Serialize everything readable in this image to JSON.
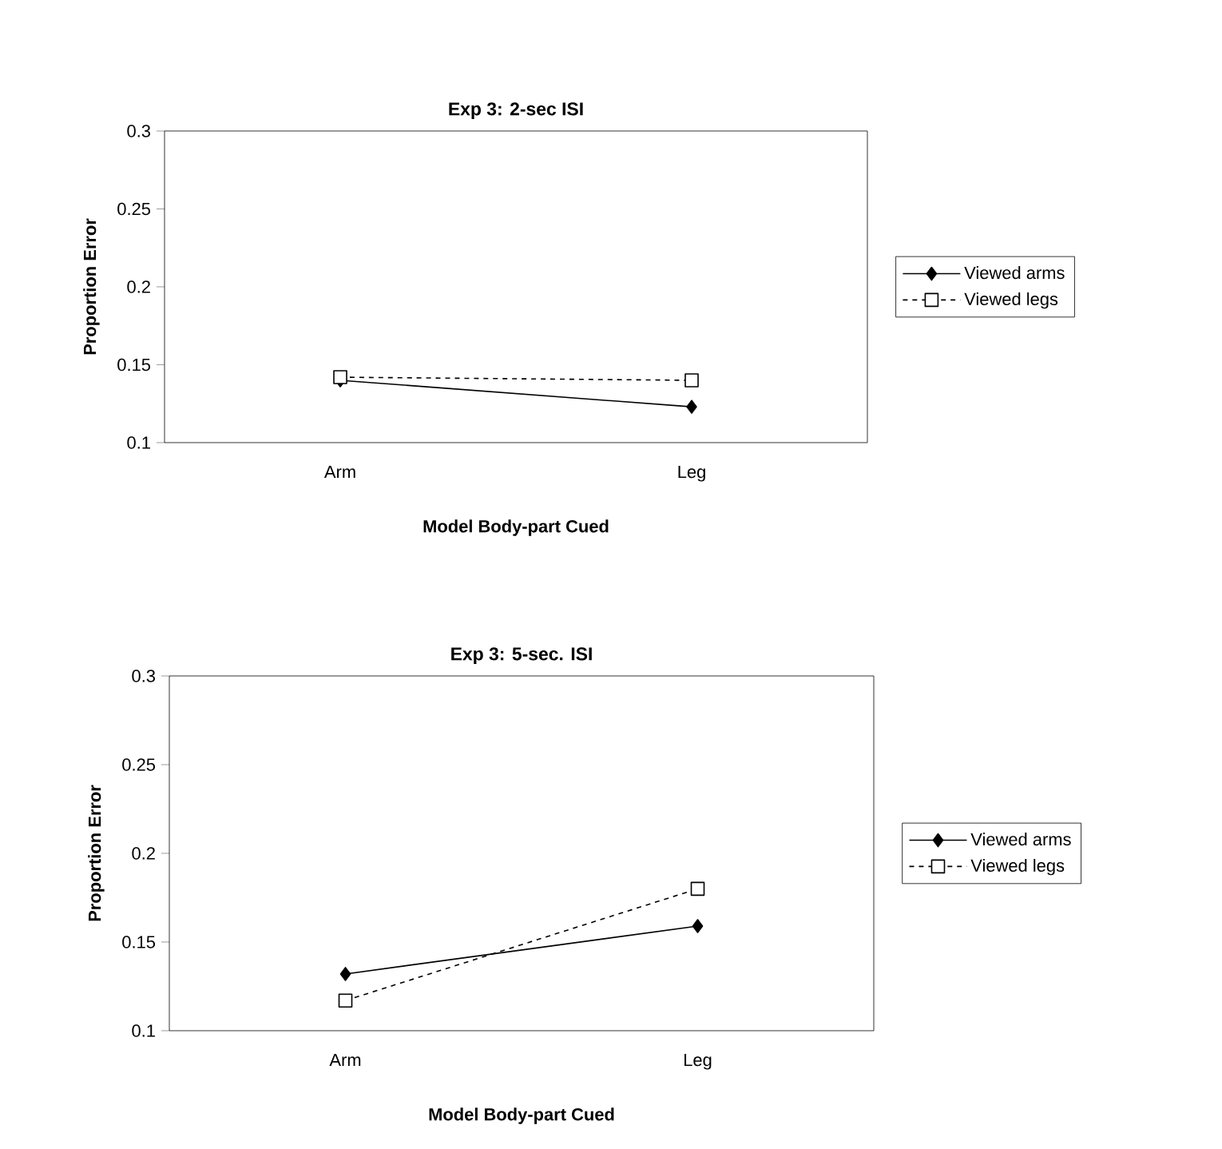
{
  "chart_data": [
    {
      "type": "line",
      "title": "Exp 3: 2-sec ISI",
      "xlabel": "Model Body-part Cued",
      "ylabel": "Proportion Error",
      "categories": [
        "Arm",
        "Leg"
      ],
      "ylim": [
        0.1,
        0.3
      ],
      "yticks": [
        0.1,
        0.15,
        0.2,
        0.25,
        0.3
      ],
      "legend": "right",
      "series": [
        {
          "name": "Viewed arms",
          "color": "#000000",
          "values": [
            0.14,
            0.123
          ],
          "marker": "diamond",
          "line_style": "solid"
        },
        {
          "name": "Viewed legs",
          "color": "#000000",
          "values": [
            0.142,
            0.14
          ],
          "marker": "square",
          "line_style": "dashed"
        }
      ]
    },
    {
      "type": "line",
      "title": "Exp 3: 5-sec. ISI",
      "xlabel": "Model Body-part Cued",
      "ylabel": "Proportion Error",
      "categories": [
        "Arm",
        "Leg"
      ],
      "ylim": [
        0.1,
        0.3
      ],
      "yticks": [
        0.1,
        0.15,
        0.2,
        0.25,
        0.3
      ],
      "legend": "right",
      "series": [
        {
          "name": "Viewed arms",
          "color": "#000000",
          "values": [
            0.132,
            0.159
          ],
          "marker": "diamond",
          "line_style": "solid"
        },
        {
          "name": "Viewed legs",
          "color": "#000000",
          "values": [
            0.117,
            0.18
          ],
          "marker": "square",
          "line_style": "dashed"
        }
      ]
    }
  ]
}
